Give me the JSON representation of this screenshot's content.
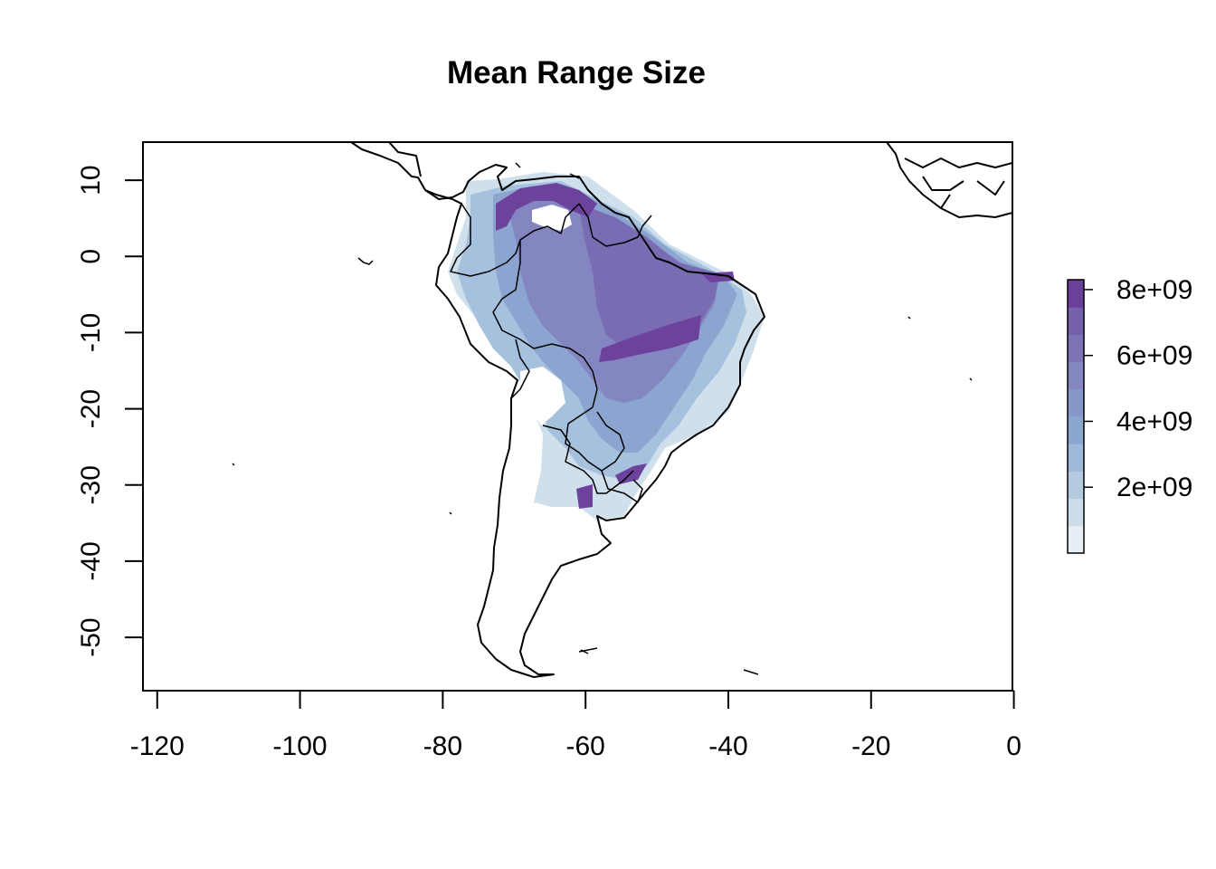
{
  "title": "Mean Range Size",
  "map": {
    "type": "raster-map",
    "extent": {
      "lon": [
        -122,
        -0.2
      ],
      "lat": [
        -57,
        15
      ]
    },
    "x_ticks": [
      -120,
      -100,
      -80,
      -60,
      -40,
      -20,
      0
    ],
    "x_tick_labels": [
      "-120",
      "-100",
      "-80",
      "-60",
      "-40",
      "-20",
      "0"
    ],
    "y_ticks": [
      10,
      0,
      -10,
      -20,
      -30,
      -40,
      -50
    ],
    "y_tick_labels": [
      "10",
      "0",
      "-10",
      "-20",
      "-30",
      "-40",
      "-50"
    ],
    "raster_region": "South America (mainland east of the Andes)",
    "legend": {
      "range": [
        0,
        8300000000
      ],
      "tick_values": [
        2000000000,
        4000000000,
        6000000000,
        8000000000
      ],
      "tick_labels": [
        "2e+09",
        "4e+09",
        "6e+09",
        "8e+09"
      ],
      "colors": [
        "#e6eef6",
        "#ccdde9",
        "#b4cae1",
        "#9fb9da",
        "#8ba7d0",
        "#8698c9",
        "#8487c1",
        "#7d73b6",
        "#7560ab",
        "#6b409c"
      ]
    }
  }
}
